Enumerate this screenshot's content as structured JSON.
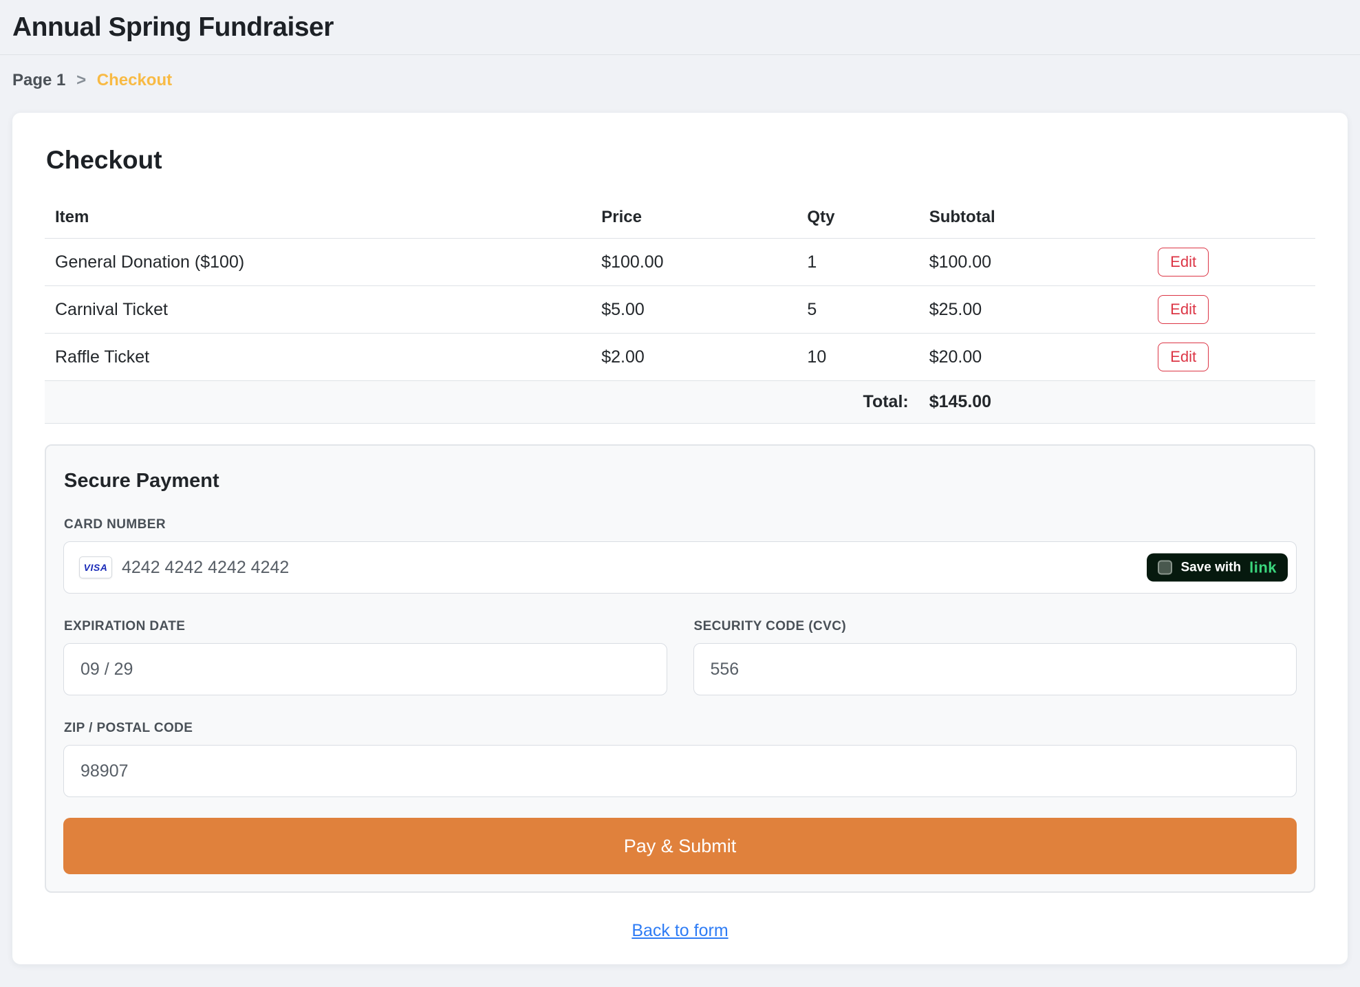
{
  "page": {
    "title": "Annual Spring Fundraiser",
    "breadcrumb": {
      "root": "Page 1",
      "separator": ">",
      "current": "Checkout"
    }
  },
  "checkout": {
    "heading": "Checkout",
    "table": {
      "headers": {
        "item": "Item",
        "price": "Price",
        "qty": "Qty",
        "subtotal": "Subtotal"
      },
      "rows": [
        {
          "item": "General Donation ($100)",
          "price": "$100.00",
          "qty": "1",
          "subtotal": "$100.00",
          "action": "Edit"
        },
        {
          "item": "Carnival Ticket",
          "price": "$5.00",
          "qty": "5",
          "subtotal": "$25.00",
          "action": "Edit"
        },
        {
          "item": "Raffle Ticket",
          "price": "$2.00",
          "qty": "10",
          "subtotal": "$20.00",
          "action": "Edit"
        }
      ],
      "total_label": "Total:",
      "total_value": "$145.00"
    }
  },
  "payment": {
    "heading": "Secure Payment",
    "card_number": {
      "label": "CARD NUMBER",
      "value": "4242 4242 4242 4242",
      "brand": "VISA",
      "save_badge": {
        "text": "Save with",
        "brand": "link"
      }
    },
    "expiration": {
      "label": "EXPIRATION DATE",
      "value": "09 / 29"
    },
    "cvc": {
      "label": "SECURITY CODE (CVC)",
      "value": "556"
    },
    "zip": {
      "label": "ZIP / POSTAL CODE",
      "value": "98907"
    },
    "submit_label": "Pay & Submit",
    "back_link": "Back to form"
  },
  "colors": {
    "page_background": "#f0f2f6",
    "breadcrumb_accent": "#f8ba44",
    "edit_button_red": "#dc3545",
    "pay_button_orange": "#e0813c",
    "back_link_blue": "#2e7cf5",
    "visa_blue": "#1a2bb8",
    "link_badge_background": "#06190e",
    "link_badge_green": "#3bd67d"
  }
}
